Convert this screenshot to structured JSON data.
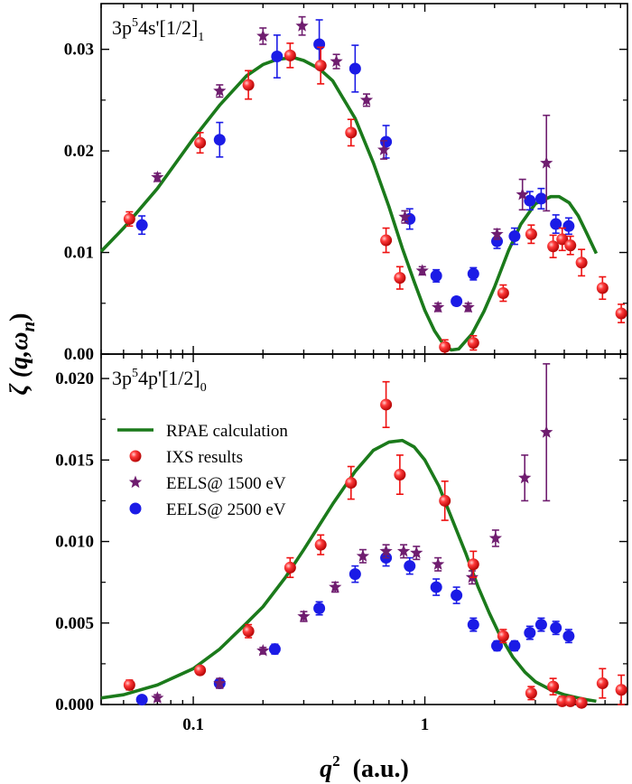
{
  "chart_data": {
    "type": "scatter",
    "xlabel_main": "q",
    "xlabel_sup": "2",
    "xlabel_units": "(a.u.)",
    "ylabel": "ζ (q,ω",
    "ylabel_sub": "n",
    "ylabel_close": ")",
    "x_scale": "log",
    "xlim": [
      0.04,
      7.5
    ],
    "x_tick_labels": [
      "0.1",
      "1"
    ],
    "legend_position": "upper-left of bottom panel",
    "series_styles": {
      "RPAE calculation": {
        "color": "#1b7a1b",
        "kind": "line"
      },
      "IXS results": {
        "color": "#ee1111",
        "kind": "sphere"
      },
      "EELS@ 1500 eV": {
        "color": "#6f1d6f",
        "kind": "star"
      },
      "EELS@ 2500 eV": {
        "color": "#1b1be6",
        "kind": "circle"
      }
    },
    "panels": [
      {
        "label_main": "3p",
        "label_sup": "5",
        "label_rest": "4s'[1/2]",
        "label_sub": "1",
        "ylim": [
          0,
          0.0345
        ],
        "y_ticks": [
          0,
          0.01,
          0.02,
          0.03
        ],
        "y_tick_labels": [
          "0.00",
          "0.01",
          "0.02",
          "0.03"
        ],
        "rpae": {
          "x": [
            0.04,
            0.05,
            0.07,
            0.1,
            0.13,
            0.17,
            0.2,
            0.23,
            0.27,
            0.3,
            0.35,
            0.4,
            0.5,
            0.6,
            0.7,
            0.8,
            0.9,
            1.0,
            1.1,
            1.2,
            1.3,
            1.4,
            1.6,
            1.8,
            2.0,
            2.3,
            2.6,
            3.0,
            3.5,
            3.8,
            4.2,
            4.6,
            5.0,
            5.5
          ],
          "y": [
            0.0101,
            0.0124,
            0.0163,
            0.0212,
            0.0245,
            0.0274,
            0.0285,
            0.029,
            0.0292,
            0.0289,
            0.0281,
            0.0269,
            0.0232,
            0.0188,
            0.0145,
            0.0104,
            0.0071,
            0.0043,
            0.0023,
            0.001,
            0.0004,
            0.0005,
            0.002,
            0.0042,
            0.0066,
            0.0102,
            0.0128,
            0.0148,
            0.0155,
            0.0155,
            0.0149,
            0.0136,
            0.0119,
            0.0099
          ]
        },
        "ixs": {
          "x": [
            0.053,
            0.107,
            0.173,
            0.262,
            0.355,
            0.48,
            0.68,
            0.78,
            1.22,
            1.62,
            2.18,
            2.88,
            3.58,
            3.92,
            4.25,
            4.75,
            5.85,
            7.05
          ],
          "y": [
            0.0133,
            0.0208,
            0.0265,
            0.0294,
            0.0284,
            0.0218,
            0.0112,
            0.0075,
            0.0007,
            0.0011,
            0.006,
            0.0118,
            0.0106,
            0.0113,
            0.0107,
            0.009,
            0.0065,
            0.004
          ],
          "err": [
            0.0007,
            0.001,
            0.0014,
            0.0012,
            0.0018,
            0.0013,
            0.0012,
            0.0011,
            0.0007,
            0.0007,
            0.0008,
            0.0009,
            0.0011,
            0.0011,
            0.0009,
            0.0013,
            0.0011,
            0.0009
          ]
        },
        "eels1500": {
          "x": [
            0.07,
            0.13,
            0.2,
            0.295,
            0.415,
            0.56,
            0.665,
            0.82,
            0.975,
            1.14,
            1.54,
            2.05,
            2.64,
            3.35
          ],
          "y": [
            0.0174,
            0.0259,
            0.0313,
            0.0323,
            0.0288,
            0.025,
            0.0201,
            0.0135,
            0.0082,
            0.0046,
            0.0046,
            0.0118,
            0.0157,
            0.0188
          ],
          "err": [
            0.0004,
            0.0006,
            0.0008,
            0.0009,
            0.0007,
            0.0006,
            0.0009,
            0.0006,
            0.0004,
            0.0004,
            0.0004,
            0.0005,
            0.0015,
            0.0047
          ]
        },
        "eels2500": {
          "x": [
            0.06,
            0.13,
            0.23,
            0.35,
            0.5,
            0.68,
            0.86,
            1.12,
            1.37,
            1.62,
            2.05,
            2.44,
            2.84,
            3.18,
            3.68,
            4.18
          ],
          "y": [
            0.0127,
            0.0211,
            0.0293,
            0.0305,
            0.0281,
            0.0209,
            0.0133,
            0.0077,
            0.0052,
            0.0079,
            0.0111,
            0.0116,
            0.0151,
            0.0153,
            0.0128,
            0.0126
          ],
          "err": [
            0.0009,
            0.0017,
            0.0021,
            0.0024,
            0.0023,
            0.0016,
            0.001,
            0.0006,
            0.0004,
            0.0006,
            0.0007,
            0.0008,
            0.0009,
            0.001,
            0.0009,
            0.0008
          ]
        }
      },
      {
        "label_main": "3p",
        "label_sup": "5",
        "label_rest": "4p'[1/2]",
        "label_sub": "0",
        "ylim": [
          0,
          0.0215
        ],
        "y_ticks": [
          0,
          0.005,
          0.01,
          0.015,
          0.02
        ],
        "y_tick_labels": [
          "0.000",
          "0.005",
          "0.010",
          "0.015",
          "0.020"
        ],
        "legend": [
          "RPAE calculation",
          "IXS results",
          "EELS@ 1500 eV",
          "EELS@ 2500 eV"
        ],
        "rpae": {
          "x": [
            0.04,
            0.05,
            0.07,
            0.1,
            0.13,
            0.17,
            0.2,
            0.25,
            0.3,
            0.35,
            0.4,
            0.5,
            0.6,
            0.7,
            0.8,
            0.9,
            1.0,
            1.15,
            1.3,
            1.5,
            1.7,
            1.9,
            2.1,
            2.4,
            2.7,
            3.0,
            3.5,
            4.0,
            4.6,
            5.0,
            5.5
          ],
          "y": [
            0.0004,
            0.0006,
            0.0012,
            0.0022,
            0.0034,
            0.005,
            0.006,
            0.0078,
            0.0095,
            0.011,
            0.0123,
            0.0143,
            0.0156,
            0.0161,
            0.0162,
            0.0158,
            0.015,
            0.0134,
            0.0115,
            0.0093,
            0.0072,
            0.0056,
            0.0043,
            0.0029,
            0.002,
            0.0014,
            0.0009,
            0.0006,
            0.0004,
            0.0003,
            0.0002
          ]
        },
        "ixs": {
          "x": [
            0.053,
            0.107,
            0.173,
            0.262,
            0.355,
            0.48,
            0.68,
            0.78,
            1.22,
            1.62,
            2.18,
            2.88,
            3.58,
            3.92,
            4.25,
            4.75,
            5.85,
            7.05
          ],
          "y": [
            0.0012,
            0.0021,
            0.0045,
            0.0084,
            0.0098,
            0.0136,
            0.0184,
            0.0141,
            0.0125,
            0.0086,
            0.0042,
            0.0007,
            0.0011,
            0.0002,
            0.0002,
            0.0001,
            0.0013,
            0.0009
          ],
          "err": [
            0.0003,
            0.0002,
            0.0004,
            0.0006,
            0.0006,
            0.001,
            0.0014,
            0.0012,
            0.0012,
            0.0008,
            0.0004,
            0.0004,
            0.0005,
            0.0003,
            0.0003,
            0.0002,
            0.0009,
            0.0009
          ]
        },
        "eels1500": {
          "x": [
            0.07,
            0.13,
            0.2,
            0.3,
            0.41,
            0.54,
            0.68,
            0.81,
            0.92,
            1.14,
            1.6,
            2.02,
            2.7,
            3.35
          ],
          "y": [
            0.0004,
            0.0013,
            0.0033,
            0.0054,
            0.0072,
            0.0091,
            0.0094,
            0.0094,
            0.0093,
            0.0086,
            0.0078,
            0.0102,
            0.0139,
            0.0167
          ],
          "err": [
            0.0002,
            0.0003,
            0.0002,
            0.0003,
            0.0003,
            0.0004,
            0.0004,
            0.0004,
            0.0004,
            0.0004,
            0.0004,
            0.0005,
            0.0014,
            0.0042
          ]
        },
        "eels2500": {
          "x": [
            0.06,
            0.13,
            0.225,
            0.35,
            0.5,
            0.68,
            0.86,
            1.12,
            1.37,
            1.62,
            2.05,
            2.44,
            2.84,
            3.18,
            3.68,
            4.18
          ],
          "y": [
            0.0003,
            0.0013,
            0.0034,
            0.0059,
            0.008,
            0.009,
            0.0085,
            0.0072,
            0.0067,
            0.0049,
            0.0036,
            0.0036,
            0.0044,
            0.0049,
            0.0047,
            0.0042
          ],
          "err": [
            0.0001,
            0.0002,
            0.0003,
            0.0004,
            0.0005,
            0.0005,
            0.0005,
            0.0005,
            0.0005,
            0.0004,
            0.0003,
            0.0003,
            0.0004,
            0.0004,
            0.0004,
            0.0004
          ]
        }
      }
    ]
  }
}
